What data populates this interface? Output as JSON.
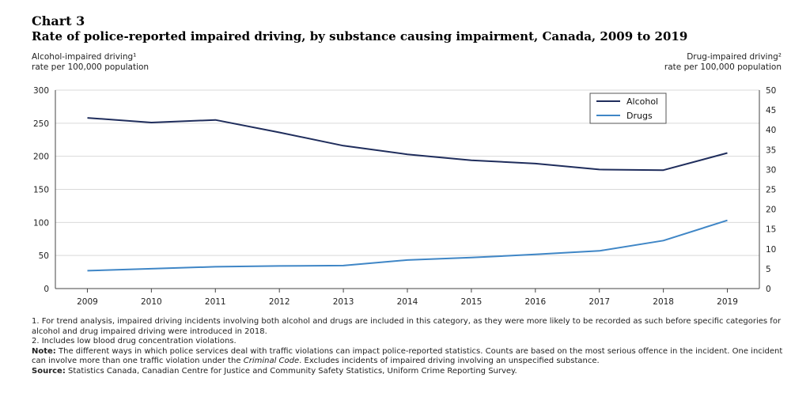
{
  "header": {
    "chart_number": "Chart 3",
    "title": "Rate of police-reported impaired driving, by substance causing impairment, Canada, 2009 to 2019"
  },
  "axes": {
    "left_line1": "Alcohol-impaired driving¹",
    "left_line2": "rate per 100,000 population",
    "right_line1": "Drug-impaired driving²",
    "right_line2": "rate per 100,000 population"
  },
  "chart_data": {
    "type": "line",
    "categories": [
      "2009",
      "2010",
      "2011",
      "2012",
      "2013",
      "2014",
      "2015",
      "2016",
      "2017",
      "2018",
      "2019"
    ],
    "series": [
      {
        "name": "Alcohol",
        "axis": "left",
        "color": "#1f2d5c",
        "values": [
          258,
          251,
          255,
          236,
          216,
          203,
          194,
          189,
          180,
          179,
          205
        ]
      },
      {
        "name": "Drugs",
        "axis": "right",
        "color": "#3f86c6",
        "values": [
          4.5,
          5.0,
          5.5,
          5.7,
          5.8,
          7.2,
          7.8,
          8.6,
          9.5,
          12.1,
          17.2
        ]
      }
    ],
    "ylim_left": [
      0,
      300
    ],
    "yticks_left": [
      "0",
      "50",
      "100",
      "150",
      "200",
      "250",
      "300"
    ],
    "ylim_right": [
      0,
      50
    ],
    "yticks_right": [
      "0",
      "5",
      "10",
      "15",
      "20",
      "25",
      "30",
      "35",
      "40",
      "45",
      "50"
    ],
    "grid": true,
    "legend_position": "top-right"
  },
  "notes": {
    "note1": "1. For trend analysis, impaired driving incidents involving both alcohol and drugs are included in this category, as they were more likely to be recorded as such before specific categories for alcohol and drug impaired driving were introduced in 2018.",
    "note2": "2. Includes low blood drug concentration violations.",
    "note_label": "Note:",
    "note_text_a": " The different ways in which police services deal with traffic violations can impact police-reported statistics. Counts are based on the most serious offence in the incident. One incident can involve more than one traffic violation under the ",
    "note_text_italic": "Criminal Code",
    "note_text_b": ". Excludes incidents of impaired driving involving an unspecified substance.",
    "source_label": "Source:",
    "source_text": " Statistics Canada, Canadian Centre for Justice and Community Safety Statistics, Uniform Crime Reporting Survey."
  }
}
